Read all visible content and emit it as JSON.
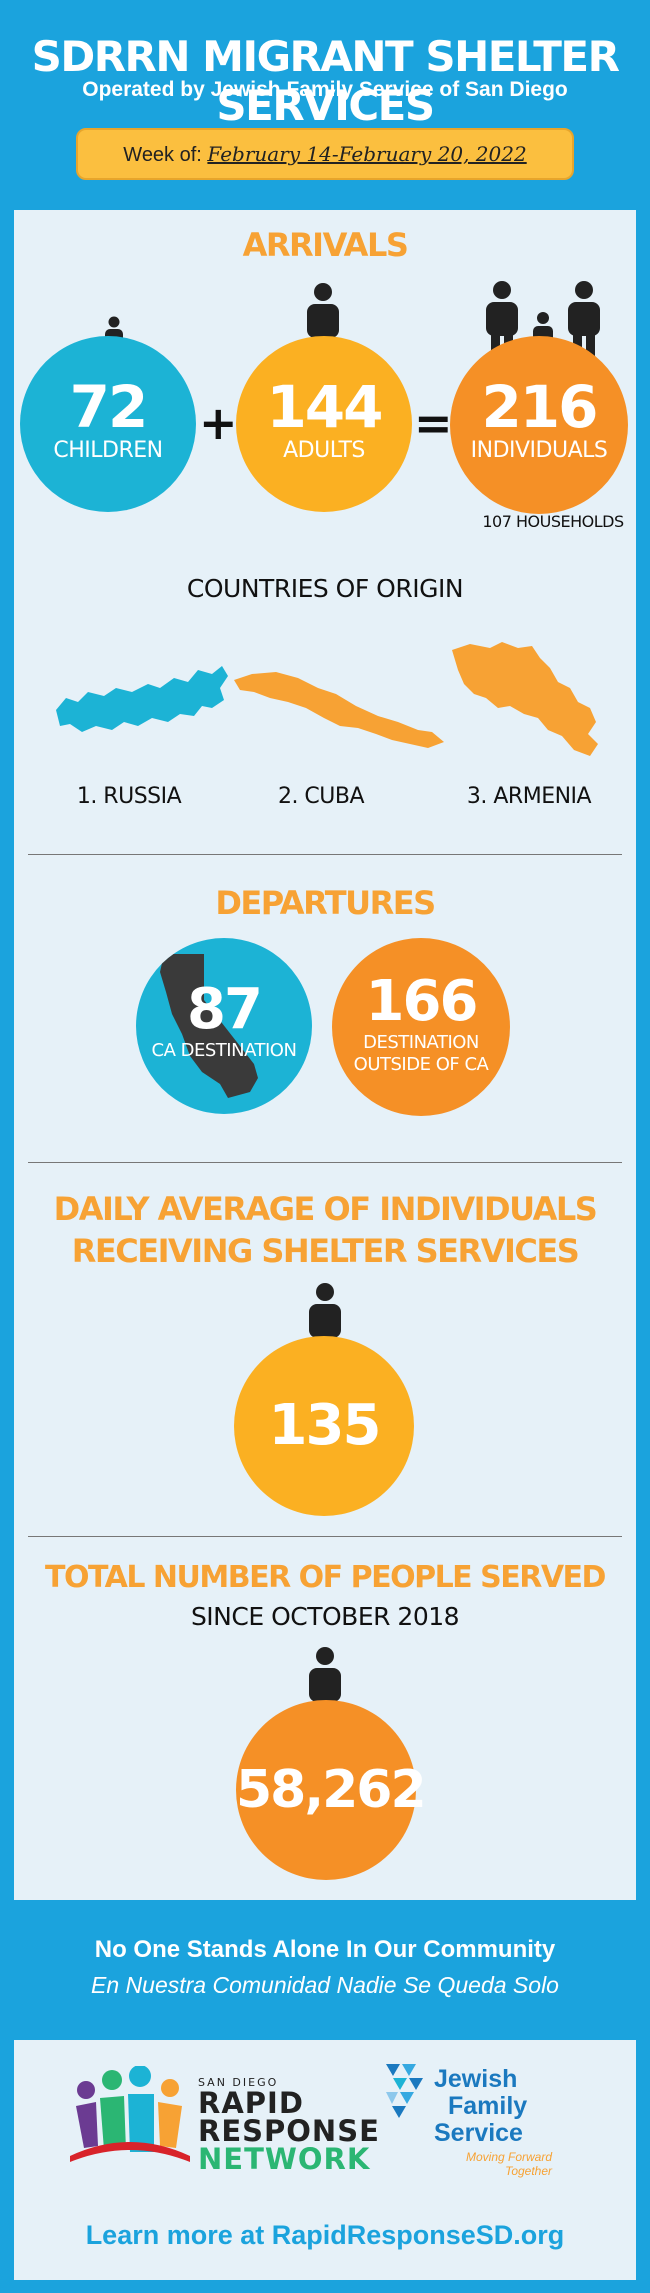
{
  "header": {
    "title": "SDRRN MIGRANT SHELTER SERVICES",
    "subtitle": "Operated by Jewish Family Service of San Diego",
    "week_prefix": "Week of:",
    "week_dates": "February 14-February 20, 2022"
  },
  "arrivals": {
    "title": "ARRIVALS",
    "children": {
      "value": "72",
      "label": "CHILDREN"
    },
    "adults": {
      "value": "144",
      "label": "ADULTS"
    },
    "individuals": {
      "value": "216",
      "label": "INDIVIDUALS"
    },
    "plus": "+",
    "equals": "=",
    "households": "107 HOUSEHOLDS"
  },
  "countries": {
    "title": "COUNTRIES OF ORIGIN",
    "items": [
      "1. RUSSIA",
      "2. CUBA",
      "3. ARMENIA"
    ]
  },
  "departures": {
    "title": "DEPARTURES",
    "ca": {
      "value": "87",
      "label": "CA DESTINATION"
    },
    "outside": {
      "value": "166",
      "label_line1": "DESTINATION",
      "label_line2": "OUTSIDE OF CA"
    }
  },
  "daily": {
    "title_line1": "DAILY AVERAGE OF INDIVIDUALS",
    "title_line2": "RECEIVING SHELTER SERVICES",
    "value": "135"
  },
  "total": {
    "title": "TOTAL NUMBER OF PEOPLE SERVED",
    "subtitle": "SINCE OCTOBER 2018",
    "value": "58,262"
  },
  "footer": {
    "line1": "No One Stands Alone In Our Community",
    "line2": "En Nuestra Comunidad Nadie Se Queda Solo",
    "rrn_small": "SAN DIEGO",
    "rrn_line1": "RAPID",
    "rrn_line2": "RESPONSE",
    "rrn_line3": "NETWORK",
    "jfs_line1": "Jewish",
    "jfs_line2": "Family",
    "jfs_line3": "Service",
    "jfs_tag_line1": "Moving Forward",
    "jfs_tag_line2": "Together",
    "learn_more": "Learn more at RapidResponseSD.org"
  },
  "colors": {
    "background": "#1ba3dd",
    "panel": "#e6f1f8",
    "orange": "#f7a234",
    "teal": "#1cb3d5",
    "amber": "#fbb022",
    "dark_orange": "#f59026"
  },
  "icons": [
    "person-icon",
    "family-icon",
    "russia-map-icon",
    "cuba-map-icon",
    "armenia-map-icon",
    "california-map-icon",
    "rrn-logo-icon",
    "jfs-logo-icon"
  ]
}
